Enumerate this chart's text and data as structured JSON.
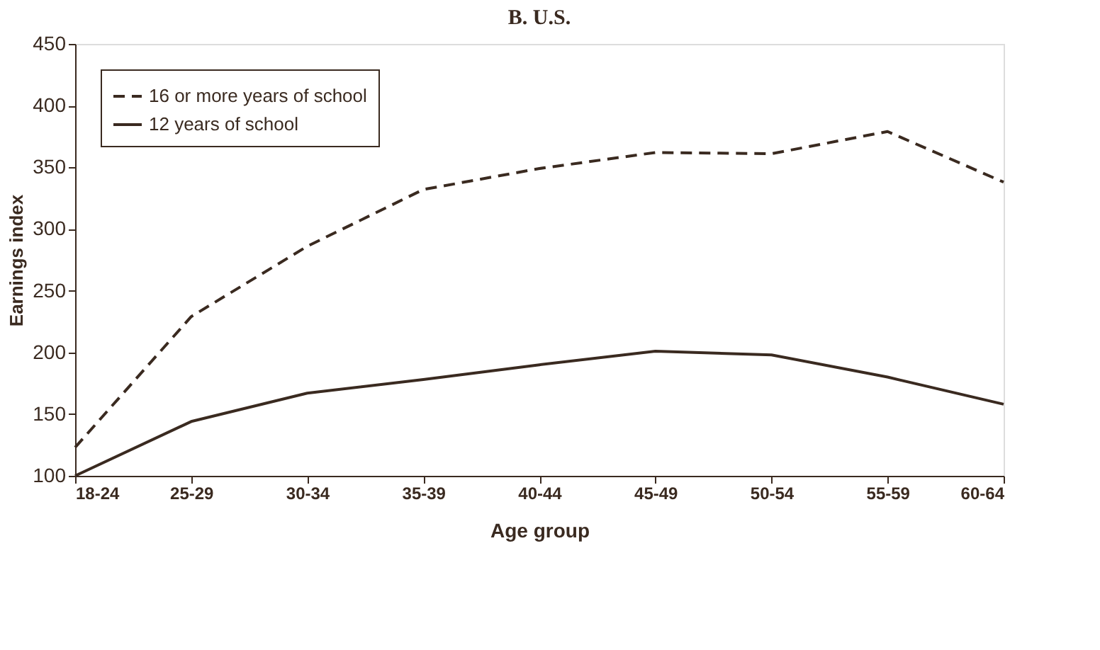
{
  "chart_data": {
    "type": "line",
    "title": "B. U.S.",
    "xlabel": "Age group",
    "ylabel": "Earnings index",
    "categories": [
      "18-24",
      "25-29",
      "30-34",
      "35-39",
      "40-44",
      "45-49",
      "50-54",
      "55-59",
      "60-64"
    ],
    "series": [
      {
        "name": "16 or more years of school",
        "color": "#3a2a20",
        "line_style": "dashed",
        "values": [
          123,
          229,
          286,
          332,
          349,
          362,
          361,
          379,
          338
        ]
      },
      {
        "name": "12 years of school",
        "color": "#3a2a20",
        "line_style": "solid",
        "values": [
          100,
          144,
          167,
          178,
          190,
          201,
          198,
          180,
          158
        ]
      }
    ],
    "ylim": [
      100,
      450
    ],
    "yticks": [
      100,
      150,
      200,
      250,
      300,
      350,
      400,
      450
    ],
    "grid": false,
    "legend": "top left",
    "marker": "none"
  }
}
